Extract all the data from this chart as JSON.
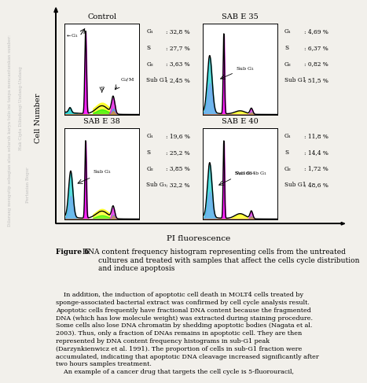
{
  "panels": [
    {
      "title": "Control",
      "stats_labels": [
        "G₁",
        "S",
        "G₂",
        "Sub G1"
      ],
      "stats_values": [
        ": 32,8 %",
        ": 27,7 %",
        ": 3,63 %",
        ": 2,45 %"
      ],
      "profile": "control"
    },
    {
      "title": "SAB E 35",
      "stats_labels": [
        "G₁",
        "S",
        "G₂",
        "Sub G1"
      ],
      "stats_values": [
        ": 4,69 %",
        ": 6,37 %",
        ": 0,82 %",
        ": 51,5 %"
      ],
      "profile": "sabe35"
    },
    {
      "title": "SAB E 38",
      "stats_labels": [
        "G₁",
        "S",
        "G₂",
        "Sub G₁"
      ],
      "stats_values": [
        ": 19,6 %",
        ": 25,2 %",
        ": 3,85 %",
        ": 32,2 %"
      ],
      "profile": "sabe38"
    },
    {
      "title": "SAB E 40",
      "stats_labels": [
        "G₁",
        "S",
        "G₂",
        "Sub G1"
      ],
      "stats_values": [
        ": 11,8 %",
        ": 14,4 %",
        ": 1,72 %",
        ": 48,6 %"
      ],
      "profile": "sabe40"
    }
  ],
  "xlabel": "PI fluorescence",
  "ylabel": "Cell Number",
  "figure_caption_bold": "Figure 6",
  "figure_caption_rest": " DNA content frequency histogram representing cells from the untreated\n        cultures and treated with samples that affect the cells cycle distribution\n        and induce apoptosis",
  "body_text": "    In addition, the induction of apoptotic cell death in MOLT4 cells treated by\nsponge-associated bacterial extract was confirmed by cell cycle analysis result.\nApoptotic cells frequently have fractional DNA content because the fragmented\nDNA (which has low molecule weight) was extracted during staining procedure.\nSome cells also lose DNA chromatin by shedding apoptotic bodies (Nagata et al.\n2003). Thus, only a fraction of DNAs remains in apoptotic cell. They are then\nrepresented by DNA content frequency histograms in sub-G1 peak\n(Darzynkienwicz et al. 1991). The proportion of cells in sub-G1 fraction were\naccumulated, indicating that apoptotic DNA cleavage increased significantly after\ntwo hours samples treatment.\n    An example of a cancer drug that targets the cell cycle is 5-fluorouracil,",
  "bg_color": "#f2f0eb",
  "watermark_lines": [
    "Dilarang mengutip sebagian atau seluruh karya tulis ini tanpa mencantumkan sumber:",
    "Hak Cipta Dilindungi Undang-Undang",
    "Pertanian Bogor"
  ]
}
